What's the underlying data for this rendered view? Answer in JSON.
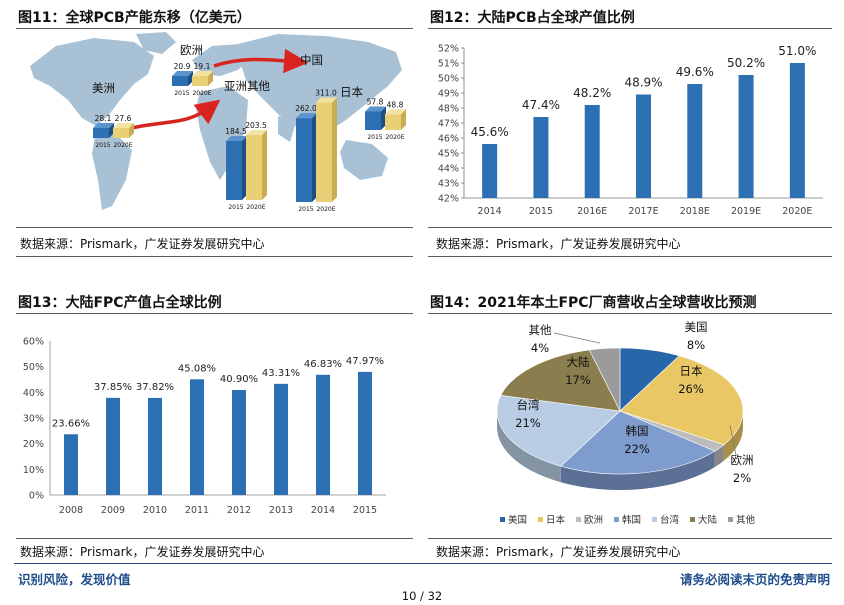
{
  "fig11": {
    "title": "图11：全球PCB产能东移（亿美元）",
    "source": "数据来源：Prismark，广发证券发展研究中心",
    "regions": [
      {
        "name": "美洲",
        "years": [
          "2015",
          "2020E"
        ],
        "values": [
          28.1,
          27.6
        ]
      },
      {
        "name": "欧洲",
        "years": [
          "2015",
          "2020E"
        ],
        "values": [
          20.9,
          19.1
        ]
      },
      {
        "name": "亚洲其他",
        "years": [
          "2015",
          "2020E"
        ],
        "values": [
          184.5,
          203.5
        ]
      },
      {
        "name": "中国",
        "years": [
          "2015",
          "2020E"
        ],
        "values": [
          262.0,
          311.0
        ]
      },
      {
        "name": "日本",
        "years": [
          "2015",
          "2020E"
        ],
        "values": [
          57.8,
          48.8
        ]
      }
    ],
    "value_labels": [
      "28.1",
      "27.6",
      "20.9",
      "19.1",
      "184.5",
      "203.5",
      "262.0",
      "311.0",
      "57.8",
      "48.8"
    ],
    "colors": {
      "blue": "#2c6fb3",
      "gold": "#e9cf76",
      "arrow": "#d9231f",
      "map": "#a8c1d4"
    }
  },
  "fig12": {
    "title": "图12：大陆PCB占全球产值比例",
    "source": "数据来源：Prismark，广发证券发展研究中心"
  },
  "fig13": {
    "title": "图13：大陆FPC产值占全球比例",
    "source": "数据来源：Prismark，广发证券发展研究中心"
  },
  "fig14": {
    "title": "图14：2021年本土FPC厂商营收占全球营收比预测",
    "source": "数据来源：Prismark，广发证券发展研究中心"
  },
  "chart_data": [
    {
      "type": "bar",
      "categories": [
        "2014",
        "2015",
        "2016E",
        "2017E",
        "2018E",
        "2019E",
        "2020E"
      ],
      "values": [
        45.6,
        47.4,
        48.2,
        48.9,
        49.6,
        50.2,
        51.0
      ],
      "value_labels": [
        "45.6%",
        "47.4%",
        "48.2%",
        "48.9%",
        "49.6%",
        "50.2%",
        "51.0%"
      ],
      "ylim": [
        42,
        52
      ],
      "yticks": [
        "42%",
        "43%",
        "44%",
        "45%",
        "46%",
        "47%",
        "48%",
        "49%",
        "50%",
        "51%",
        "52%"
      ],
      "color": "#2c6fb3"
    },
    {
      "type": "bar",
      "categories": [
        "2008",
        "2009",
        "2010",
        "2011",
        "2012",
        "2013",
        "2014",
        "2015"
      ],
      "values": [
        23.66,
        37.85,
        37.82,
        45.08,
        40.9,
        43.31,
        46.83,
        47.97
      ],
      "value_labels": [
        "23.66%",
        "37.85%",
        "37.82%",
        "45.08%",
        "40.90%",
        "43.31%",
        "46.83%",
        "47.97%"
      ],
      "ylim": [
        0,
        60
      ],
      "yticks": [
        "0%",
        "10%",
        "20%",
        "30%",
        "40%",
        "50%",
        "60%"
      ],
      "color": "#2c6fb3"
    },
    {
      "type": "pie",
      "legend": [
        "美国",
        "日本",
        "欧洲",
        "韩国",
        "台湾",
        "大陆",
        "其他"
      ],
      "slices": [
        {
          "name": "美国",
          "value": 8,
          "label": "8%",
          "color": "#2766a8"
        },
        {
          "name": "日本",
          "value": 26,
          "label": "26%",
          "color": "#e9c765"
        },
        {
          "name": "欧洲",
          "value": 2,
          "label": "2%",
          "color": "#bcbcbc"
        },
        {
          "name": "韩国",
          "value": 22,
          "label": "22%",
          "color": "#7e9ccd"
        },
        {
          "name": "台湾",
          "value": 21,
          "label": "21%",
          "color": "#b8cde3"
        },
        {
          "name": "大陆",
          "value": 17,
          "label": "17%",
          "color": "#8a7d4e"
        },
        {
          "name": "其他",
          "value": 4,
          "label": "4%",
          "color": "#9b9b9b"
        }
      ]
    }
  ],
  "footer": {
    "left": "识别风险，发现价值",
    "right": "请务必阅读末页的免责声明",
    "page": "10 / 32"
  }
}
